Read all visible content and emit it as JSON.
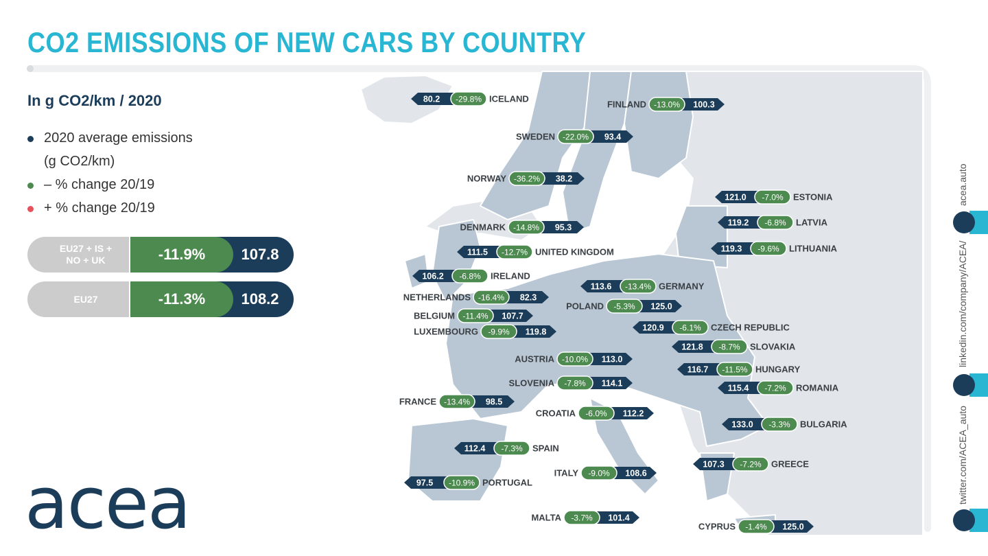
{
  "header": {
    "title": "CO2 EMISSIONS OF NEW CARS BY COUNTRY",
    "subtitle": "In g CO2/km / 2020"
  },
  "legend": [
    {
      "label": "2020 average emissions (g CO2/km)",
      "color": "#1c3d5a"
    },
    {
      "label": "– % change 20/19",
      "color": "#4d8a4f"
    },
    {
      "label": "+ % change 20/19",
      "color": "#e8505b"
    }
  ],
  "summary": [
    {
      "label": "EU27 + IS + NO + UK",
      "change": "-11.9%",
      "value": "107.8"
    },
    {
      "label": "EU27",
      "change": "-11.3%",
      "value": "108.2"
    }
  ],
  "countries": [
    {
      "name": "ICELAND",
      "value": "80.2",
      "change": "-29.8%"
    },
    {
      "name": "FINLAND",
      "value": "100.3",
      "change": "-13.0%"
    },
    {
      "name": "SWEDEN",
      "value": "93.4",
      "change": "-22.0%"
    },
    {
      "name": "NORWAY",
      "value": "38.2",
      "change": "-36.2%"
    },
    {
      "name": "ESTONIA",
      "value": "121.0",
      "change": "-7.0%"
    },
    {
      "name": "LATVIA",
      "value": "119.2",
      "change": "-6.8%"
    },
    {
      "name": "DENMARK",
      "value": "95.3",
      "change": "-14.8%"
    },
    {
      "name": "LITHUANIA",
      "value": "119.3",
      "change": "-9.6%"
    },
    {
      "name": "UNITED KINGDOM",
      "value": "111.5",
      "change": "-12.7%"
    },
    {
      "name": "IRELAND",
      "value": "106.2",
      "change": "-6.8%"
    },
    {
      "name": "GERMANY",
      "value": "113.6",
      "change": "-13.4%"
    },
    {
      "name": "NETHERLANDS",
      "value": "82.3",
      "change": "-16.4%"
    },
    {
      "name": "POLAND",
      "value": "125.0",
      "change": "-5.3%"
    },
    {
      "name": "BELGIUM",
      "value": "107.7",
      "change": "-11.4%"
    },
    {
      "name": "CZECH REPUBLIC",
      "value": "120.9",
      "change": "-6.1%"
    },
    {
      "name": "LUXEMBOURG",
      "value": "119.8",
      "change": "-9.9%"
    },
    {
      "name": "SLOVAKIA",
      "value": "121.8",
      "change": "-8.7%"
    },
    {
      "name": "AUSTRIA",
      "value": "113.0",
      "change": "-10.0%"
    },
    {
      "name": "HUNGARY",
      "value": "116.7",
      "change": "-11.5%"
    },
    {
      "name": "SLOVENIA",
      "value": "114.1",
      "change": "-7.8%"
    },
    {
      "name": "ROMANIA",
      "value": "115.4",
      "change": "-7.2%"
    },
    {
      "name": "FRANCE",
      "value": "98.5",
      "change": "-13.4%"
    },
    {
      "name": "CROATIA",
      "value": "112.2",
      "change": "-6.0%"
    },
    {
      "name": "BULGARIA",
      "value": "133.0",
      "change": "-3.3%"
    },
    {
      "name": "SPAIN",
      "value": "112.4",
      "change": "-7.3%"
    },
    {
      "name": "GREECE",
      "value": "107.3",
      "change": "-7.2%"
    },
    {
      "name": "ITALY",
      "value": "108.6",
      "change": "-9.0%"
    },
    {
      "name": "PORTUGAL",
      "value": "97.5",
      "change": "-10.9%"
    },
    {
      "name": "MALTA",
      "value": "101.4",
      "change": "-3.7%"
    },
    {
      "name": "CYPRUS",
      "value": "125.0",
      "change": "-1.4%"
    }
  ],
  "logo": "acea",
  "social": [
    "twitter.com/ACEA_auto",
    "linkedin.com/company/ACEA/",
    "acea.auto"
  ]
}
